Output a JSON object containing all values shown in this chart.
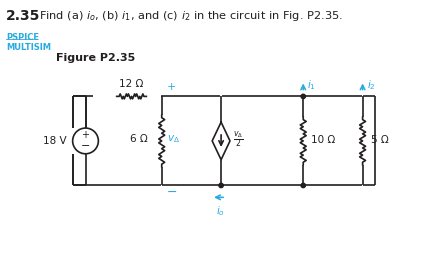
{
  "bg_color": "#ffffff",
  "text_color": "#231f20",
  "cyan_color": "#29abe2",
  "circuit_color": "#231f20",
  "title_bold": "2.35",
  "title_rest": "Find (a) $i_o$, (b) $i_1$, and (c) $i_2$ in the circuit in Fig. P2.35.",
  "pspice_label": "PSPICE",
  "multisim_label": "MULTISIM",
  "figure_label": "Figure P2.35",
  "label_12": "12 Ω",
  "label_6": "6 Ω",
  "label_10": "10 Ω",
  "label_5": "5 Ω",
  "label_18v": "18 V",
  "label_va": "$v_\\Delta$",
  "label_va2": "$\\frac{v_{\\Delta}}{2}$",
  "label_io": "$i_o$",
  "label_i1": "$i_1$",
  "label_i2": "$i_2$",
  "label_plus": "+",
  "label_minus": "−"
}
